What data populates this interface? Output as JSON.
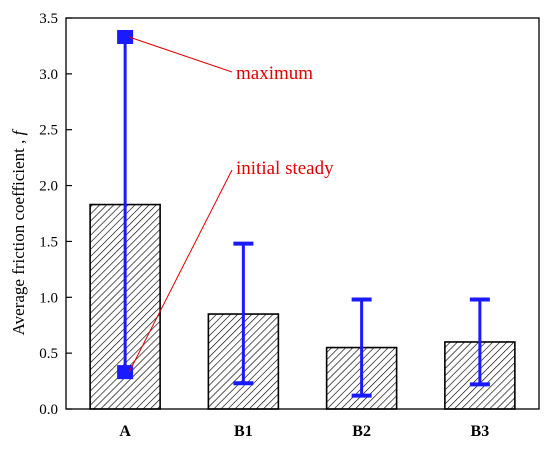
{
  "chart_data": {
    "type": "bar",
    "categories": [
      "A",
      "B1",
      "B2",
      "B3"
    ],
    "values": [
      1.83,
      0.85,
      0.55,
      0.6
    ],
    "error_bars": [
      {
        "low": 0.33,
        "high": 3.33
      },
      {
        "low": 0.23,
        "high": 1.48
      },
      {
        "low": 0.12,
        "high": 0.98
      },
      {
        "low": 0.22,
        "high": 0.98
      }
    ],
    "ylim": [
      0,
      3.5
    ],
    "yticks": [
      "0.0",
      "0.5",
      "1.0",
      "1.5",
      "2.0",
      "2.5",
      "3.0",
      "3.5"
    ],
    "ytick_values": [
      0,
      0.5,
      1.0,
      1.5,
      2.0,
      2.5,
      3.0,
      3.5
    ],
    "ylabel": "Average friction coefficient , ",
    "ylabel_symbol": "f",
    "xlabel": "",
    "grid": false,
    "bar_fill": "hatched",
    "annotations": [
      {
        "text": "maximum",
        "points_to_category": "A",
        "points_to_value": 3.33
      },
      {
        "text": "initial steady",
        "points_to_category": "A",
        "points_to_value": 0.33
      }
    ],
    "colors": {
      "bars": "#000000",
      "error_bars": "#1a1aff",
      "annotations": "#e00000"
    }
  }
}
